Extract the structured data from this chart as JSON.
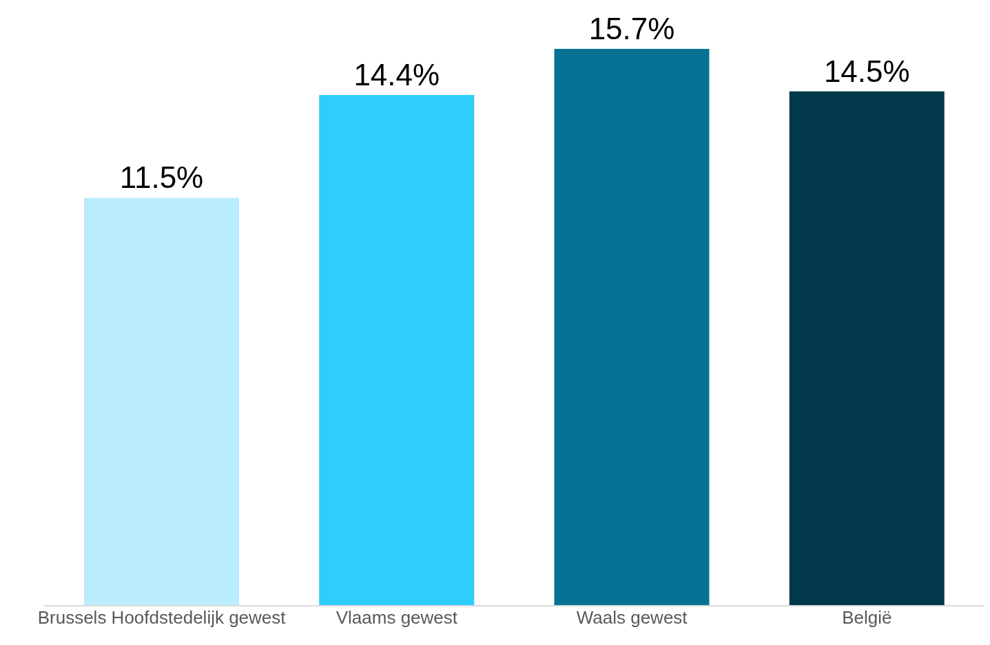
{
  "chart_data": {
    "type": "bar",
    "categories": [
      "Brussels Hoofdstedelijk gewest",
      "Vlaams gewest",
      "Waals gewest",
      "België"
    ],
    "values": [
      11.5,
      14.4,
      15.7,
      14.5
    ],
    "colors": [
      "#b9ecfd",
      "#2ecdfb",
      "#057294",
      "#02394a"
    ],
    "value_labels": [
      "11.5%",
      "14.4%",
      "15.7%",
      "14.5%"
    ]
  }
}
